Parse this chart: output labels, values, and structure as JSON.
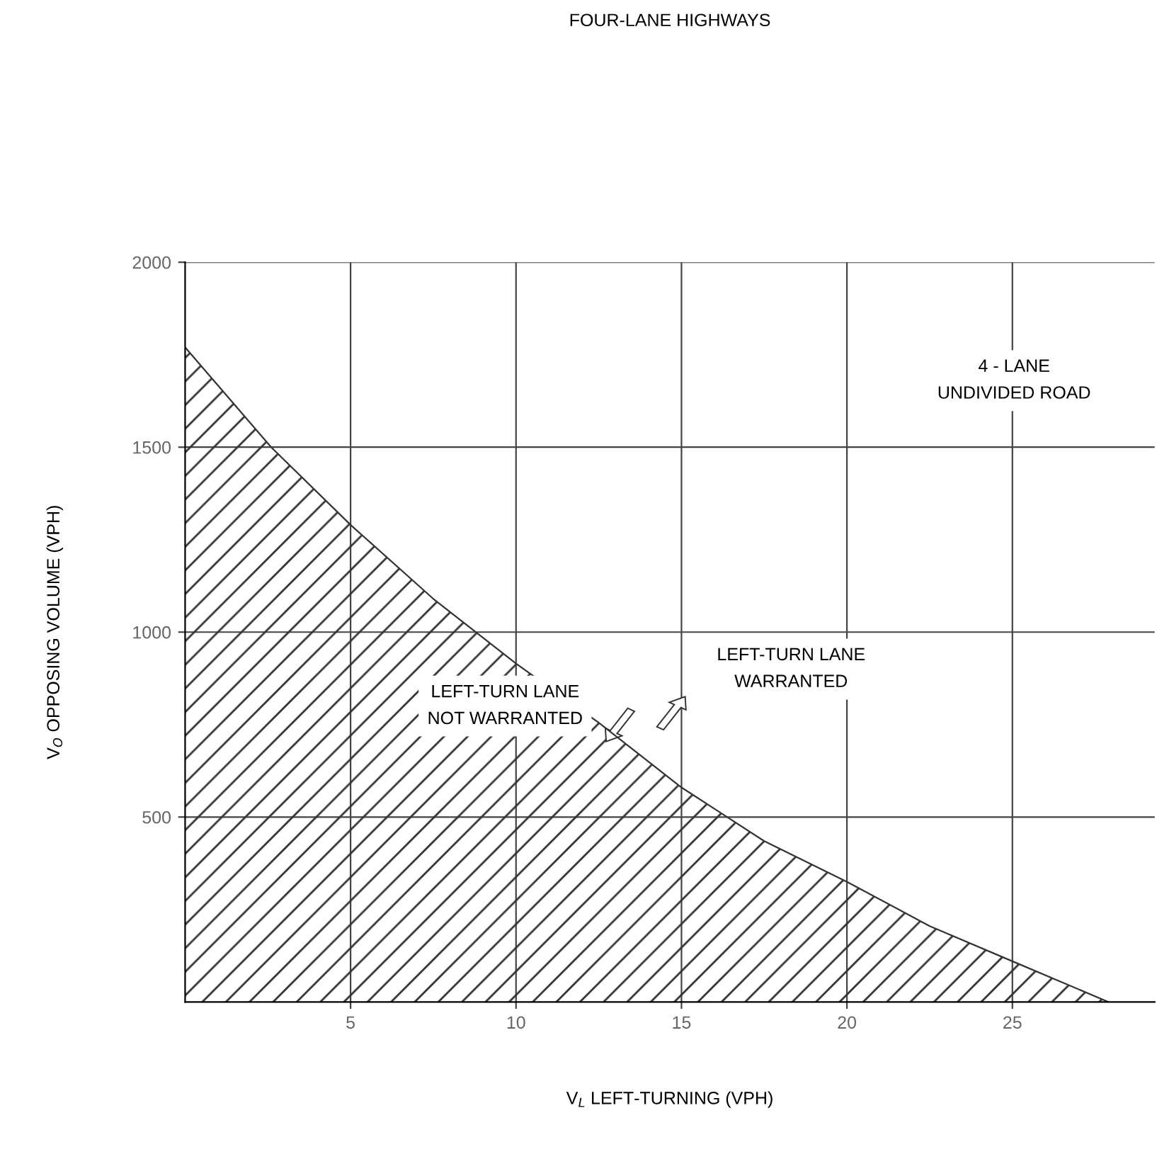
{
  "chart_data": {
    "type": "area",
    "title": "FOUR-LANE HIGHWAYS",
    "xlabel": "V$_{L}$ LEFT-TURNING (VPH)",
    "ylabel": "V$_{O}$ OPPOSING VOLUME (VPH)",
    "x": [
      0,
      2.6,
      5,
      7.5,
      10,
      12.5,
      15,
      17.5,
      20,
      22.5,
      25,
      27.9
    ],
    "series": [
      {
        "color": "#333333",
        "values": [
          1770,
          1500,
          1290,
          1090,
          915,
          755,
          580,
          435,
          325,
          205,
          110,
          0
        ]
      }
    ],
    "xlim": [
      0,
      29.3
    ],
    "ylim": [
      0,
      2000
    ],
    "xticks": [
      5,
      10,
      15,
      20,
      25
    ],
    "yticks": [
      500,
      1000,
      1500,
      2000
    ],
    "grid": true,
    "annotations": [
      "4 - LANE\nUNDIVIDED ROAD",
      "LEFT-TURN LANE\nNOT WARRANTED",
      "LEFT-TURN LANE\nWARRANTED"
    ]
  }
}
